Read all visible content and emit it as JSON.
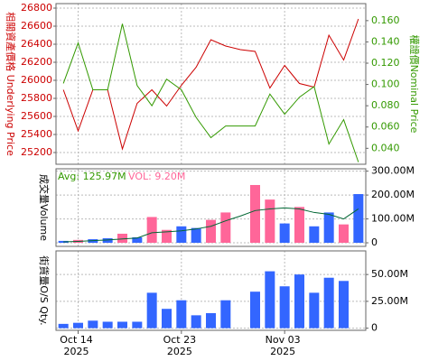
{
  "chart_data": [
    {
      "type": "line",
      "ylabel": "相關資產價格 Underlying Price",
      "y2label": "權證價Nominal Price",
      "categories": [
        null,
        "Oct 14",
        null,
        null,
        null,
        null,
        null,
        null,
        "Oct 23",
        null,
        null,
        null,
        null,
        null,
        null,
        "Nov 03",
        null,
        null,
        null,
        null,
        null
      ],
      "category_years": [
        null,
        "2025",
        null,
        null,
        null,
        null,
        null,
        null,
        "2025",
        null,
        null,
        null,
        null,
        null,
        null,
        "2025",
        null,
        null,
        null,
        null,
        null
      ],
      "ylim": [
        25070,
        26850
      ],
      "yticks": [
        25200,
        25400,
        25600,
        25800,
        26000,
        26200,
        26400,
        26600,
        26800
      ],
      "y2lim": [
        0.025,
        0.176
      ],
      "y2ticks": [
        {
          "value": 0.04,
          "label": "0.040"
        },
        {
          "value": 0.06,
          "label": "0.060"
        },
        {
          "value": 0.08,
          "label": "0.080"
        },
        {
          "value": 0.1,
          "label": "0.100"
        },
        {
          "value": 0.12,
          "label": "0.120"
        },
        {
          "value": 0.14,
          "label": "0.140"
        },
        {
          "value": 0.16,
          "label": "0.160"
        }
      ],
      "grid": true,
      "series": [
        {
          "color": "#cc0000",
          "values": [
            25895,
            25440,
            25895,
            25895,
            25240,
            25745,
            25895,
            25715,
            25945,
            26145,
            26450,
            26380,
            26340,
            26320,
            25915,
            26165,
            25965,
            25925,
            26500,
            26225,
            26680
          ]
        },
        {
          "color": "#339900",
          "axis": "y2",
          "values": [
            0.101,
            0.139,
            0.095,
            0.095,
            0.157,
            0.099,
            0.08,
            0.105,
            0.095,
            0.069,
            0.05,
            0.061,
            0.061,
            0.061,
            0.091,
            0.072,
            0.088,
            0.098,
            0.044,
            0.067,
            0.027
          ]
        }
      ]
    },
    {
      "type": "bar",
      "ylabel": "成交量Volume",
      "avg_label": "Avg: 125.97M",
      "vol_label": "VOL: 9.20M",
      "ylim": [
        -15000000,
        310000000
      ],
      "yticks": [
        0,
        {
          "value": 100000000,
          "label": "100.00M"
        },
        {
          "value": 200000000,
          "label": "200.00M"
        },
        {
          "value": 300000000,
          "label": "300.00M"
        }
      ],
      "grid": true,
      "values": [
        8000000,
        12000000,
        15000000,
        19000000,
        38000000,
        23000000,
        108000000,
        54000000,
        69000000,
        62000000,
        96000000,
        127000000,
        null,
        242000000,
        181000000,
        81000000,
        150000000,
        69000000,
        127000000,
        77000000,
        204000000
      ],
      "colors": [
        "#3366ff",
        "#ff6699",
        "#3366ff",
        "#3366ff",
        "#ff6699",
        "#3366ff",
        "#ff6699",
        "#ff6699",
        "#3366ff",
        "#3366ff",
        "#ff6699",
        "#ff6699",
        null,
        "#ff6699",
        "#ff6699",
        "#3366ff",
        "#ff6699",
        "#3366ff",
        "#3366ff",
        "#ff6699",
        "#3366ff"
      ],
      "avg_series": {
        "color": "#006633",
        "values": [
          4000000,
          6000000,
          9000000,
          12000000,
          16000000,
          20000000,
          42000000,
          46000000,
          50000000,
          58000000,
          69000000,
          92000000,
          112000000,
          135000000,
          142000000,
          146000000,
          142000000,
          127000000,
          119000000,
          100000000,
          142000000
        ]
      }
    },
    {
      "type": "bar",
      "ylabel": "街貨量O/S Qty.",
      "ylim": [
        -2000000,
        72000000
      ],
      "yticks": [
        0,
        {
          "value": 25000000,
          "label": "25.00M"
        },
        {
          "value": 50000000,
          "label": "50.00M"
        }
      ],
      "grid": true,
      "color": "#3366ff",
      "values": [
        4000000,
        5000000,
        7000000,
        6000000,
        6000000,
        6000000,
        33000000,
        18000000,
        26000000,
        12000000,
        14000000,
        26000000,
        null,
        34000000,
        53000000,
        39000000,
        50000000,
        33000000,
        47000000,
        44000000,
        null
      ]
    }
  ]
}
